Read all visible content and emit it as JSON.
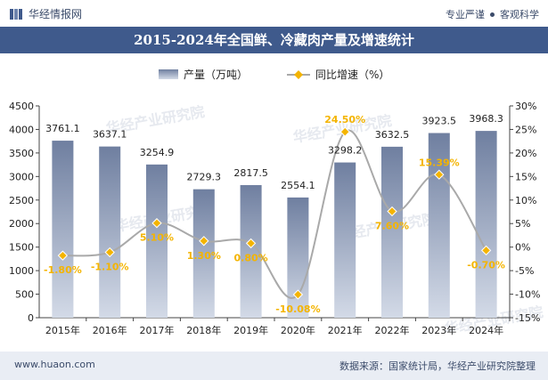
{
  "header": {
    "brand": "华经情报网",
    "slogan_left": "专业严谨",
    "slogan_right": "客观科学"
  },
  "footer": {
    "website": "www.huaon.com",
    "source": "数据来源：国家统计局，华经产业研究院整理"
  },
  "watermark": "华经产业研究院",
  "colors": {
    "title_bar": "#3f5a8c",
    "bar": "#8a99b8",
    "line": "#a9a9a9",
    "marker": "#f4b400",
    "label": "#f4b400"
  },
  "chart_data": {
    "type": "bar",
    "title": "2015-2024年全国鲜、冷藏肉产量及增速统计",
    "categories": [
      "2015年",
      "2016年",
      "2017年",
      "2018年",
      "2019年",
      "2020年",
      "2021年",
      "2022年",
      "2023年",
      "2024年"
    ],
    "series": [
      {
        "name": "产量（万吨）",
        "type": "bar",
        "axis": "left",
        "values": [
          3761.1,
          3637.1,
          3254.9,
          2729.3,
          2817.5,
          2554.1,
          3298.2,
          3632.5,
          3923.5,
          3968.3
        ],
        "labels": [
          "3761.1",
          "3637.1",
          "3254.9",
          "2729.3",
          "2817.5",
          "2554.1",
          "3298.2",
          "3632.5",
          "3923.5",
          "3968.3"
        ]
      },
      {
        "name": "同比增速（%）",
        "type": "line",
        "axis": "right",
        "values": [
          -1.8,
          -1.1,
          5.1,
          1.3,
          0.8,
          -10.08,
          24.5,
          7.6,
          15.39,
          -0.7
        ],
        "labels": [
          "-1.80%",
          "-1.10%",
          "5.10%",
          "1.30%",
          "0.80%",
          "-10.08%",
          "24.50%",
          "7.60%",
          "15.39%",
          "-0.70%"
        ]
      }
    ],
    "y_left": {
      "min": 0,
      "max": 4500,
      "ticks": [
        "0",
        "500",
        "1000",
        "1500",
        "2000",
        "2500",
        "3000",
        "3500",
        "4000",
        "4500"
      ]
    },
    "y_right": {
      "min": -15,
      "max": 30,
      "ticks": [
        "-15%",
        "-10%",
        "-5%",
        "0%",
        "5%",
        "10%",
        "15%",
        "20%",
        "25%",
        "30%"
      ]
    },
    "legend": "top-center",
    "grid": false
  }
}
